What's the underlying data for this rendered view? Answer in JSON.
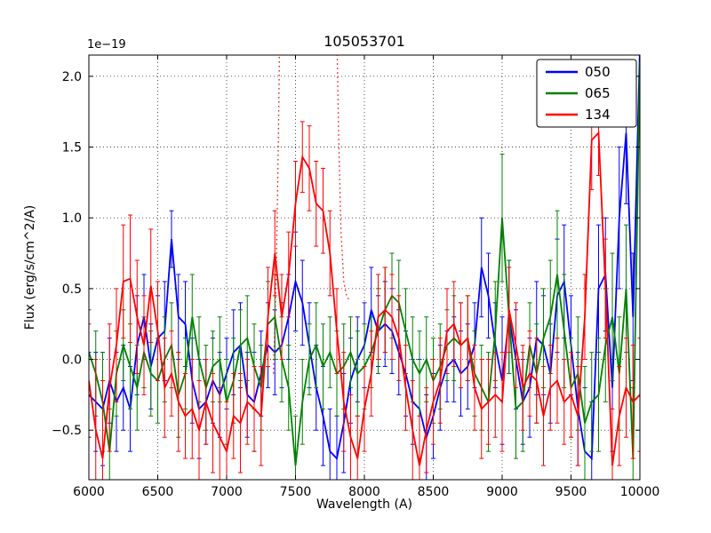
{
  "chart_data": {
    "type": "line",
    "title": "105053701",
    "xlabel": "Wavelength (A)",
    "ylabel": "Flux (erg/s/cm^2/A)",
    "y_scale_factor": "1e−19",
    "xlim": [
      6000,
      10000
    ],
    "ylim": [
      -0.85,
      2.15
    ],
    "x_ticks": [
      6000,
      6500,
      7000,
      7500,
      8000,
      8500,
      9000,
      9500,
      10000
    ],
    "y_ticks": [
      -0.5,
      0.0,
      0.5,
      1.0,
      1.5,
      2.0
    ],
    "grid": true,
    "grid_style": "dotted",
    "legend_position": "upper right",
    "x_start": 6000,
    "x_step": 50,
    "series": [
      {
        "name": "050",
        "color": "#0000ff",
        "values": [
          -0.25,
          -0.3,
          -0.35,
          -0.15,
          -0.3,
          -0.2,
          -0.35,
          0.1,
          0.3,
          -0.05,
          0.15,
          0.2,
          0.85,
          0.3,
          0.25,
          -0.15,
          -0.35,
          -0.3,
          -0.15,
          -0.25,
          -0.1,
          0.05,
          0.1,
          -0.25,
          -0.3,
          -0.1,
          0.1,
          0.05,
          0.1,
          0.3,
          0.55,
          0.4,
          0.1,
          -0.2,
          -0.4,
          -0.65,
          -0.7,
          -0.45,
          -0.15,
          0.0,
          0.1,
          0.35,
          0.2,
          0.25,
          0.2,
          0.05,
          -0.1,
          -0.3,
          -0.35,
          -0.55,
          -0.4,
          -0.2,
          -0.05,
          0.0,
          -0.1,
          -0.05,
          0.1,
          0.65,
          0.45,
          0.1,
          -0.15,
          0.3,
          0.0,
          -0.3,
          -0.2,
          0.15,
          0.1,
          -0.1,
          0.45,
          0.55,
          0.1,
          -0.35,
          -0.65,
          -0.7,
          0.5,
          0.6,
          -0.2,
          1.0,
          1.6,
          0.3,
          2.2
        ],
        "errors": [
          0.3,
          0.35,
          0.4,
          0.3,
          0.35,
          0.3,
          0.3,
          0.35,
          0.3,
          0.3,
          0.3,
          0.35,
          0.2,
          0.3,
          0.3,
          0.3,
          0.35,
          0.3,
          0.3,
          0.3,
          0.25,
          0.3,
          0.3,
          0.3,
          0.35,
          0.3,
          0.3,
          0.3,
          0.3,
          0.3,
          0.35,
          0.3,
          0.3,
          0.3,
          0.35,
          0.3,
          0.3,
          0.35,
          0.3,
          0.3,
          0.3,
          0.3,
          0.25,
          0.3,
          0.3,
          0.3,
          0.3,
          0.3,
          0.35,
          0.3,
          0.3,
          0.3,
          0.25,
          0.3,
          0.3,
          0.3,
          0.3,
          0.35,
          0.3,
          0.3,
          0.45,
          0.4,
          0.35,
          0.3,
          0.35,
          0.4,
          0.35,
          0.35,
          0.4,
          0.4,
          0.35,
          0.4,
          0.45,
          0.4,
          0.45,
          0.4,
          0.45,
          0.5,
          0.5,
          0.45,
          0.5
        ]
      },
      {
        "name": "065",
        "color": "#008000",
        "values": [
          0.05,
          -0.1,
          -0.3,
          -0.65,
          -0.1,
          0.1,
          -0.05,
          -0.2,
          0.05,
          -0.1,
          -0.15,
          0.0,
          0.1,
          -0.25,
          -0.1,
          0.3,
          0.0,
          -0.2,
          -0.05,
          0.0,
          -0.3,
          -0.15,
          0.1,
          0.15,
          -0.05,
          -0.2,
          0.25,
          0.3,
          0.0,
          -0.2,
          -0.75,
          -0.3,
          0.0,
          0.1,
          -0.05,
          0.05,
          -0.1,
          -0.05,
          0.05,
          -0.1,
          -0.05,
          0.05,
          0.2,
          0.35,
          0.45,
          0.4,
          0.2,
          0.0,
          -0.1,
          0.0,
          -0.15,
          -0.05,
          0.1,
          0.15,
          0.1,
          0.15,
          -0.1,
          -0.2,
          -0.3,
          0.2,
          1.0,
          0.3,
          -0.35,
          -0.3,
          0.1,
          -0.1,
          0.15,
          0.3,
          0.6,
          0.2,
          -0.2,
          -0.1,
          -0.45,
          -0.3,
          -0.25,
          0.1,
          0.3,
          -0.1,
          0.5,
          -0.7,
          2.1
        ],
        "errors": [
          0.3,
          0.3,
          0.35,
          0.3,
          0.3,
          0.25,
          0.3,
          0.3,
          0.25,
          0.3,
          0.3,
          0.3,
          0.3,
          0.3,
          0.25,
          0.3,
          0.3,
          0.3,
          0.25,
          0.3,
          0.3,
          0.3,
          0.25,
          0.3,
          0.3,
          0.3,
          0.3,
          0.3,
          0.3,
          0.3,
          0.35,
          0.3,
          0.25,
          0.3,
          0.3,
          0.25,
          0.3,
          0.3,
          0.25,
          0.3,
          0.3,
          0.25,
          0.3,
          0.3,
          0.3,
          0.3,
          0.3,
          0.3,
          0.3,
          0.3,
          0.3,
          0.3,
          0.25,
          0.3,
          0.3,
          0.3,
          0.3,
          0.3,
          0.35,
          0.35,
          0.45,
          0.4,
          0.35,
          0.35,
          0.3,
          0.35,
          0.35,
          0.4,
          0.45,
          0.4,
          0.35,
          0.4,
          0.4,
          0.35,
          0.4,
          0.4,
          0.45,
          0.4,
          0.45,
          0.5,
          0.55
        ]
      },
      {
        "name": "134",
        "color": "#ff0000",
        "values": [
          -0.15,
          -0.5,
          -0.7,
          -0.2,
          0.1,
          0.55,
          0.57,
          0.3,
          0.1,
          0.52,
          0.2,
          -0.2,
          -0.1,
          -0.3,
          -0.4,
          -0.35,
          -0.5,
          -0.3,
          -0.45,
          -0.55,
          -0.65,
          -0.4,
          -0.45,
          -0.3,
          -0.35,
          -0.4,
          0.3,
          0.75,
          0.3,
          0.6,
          1.1,
          1.43,
          1.35,
          1.1,
          1.05,
          0.75,
          0.2,
          -0.3,
          -0.55,
          -0.7,
          -0.35,
          -0.1,
          0.3,
          0.35,
          0.3,
          0.15,
          -0.2,
          -0.5,
          -0.75,
          -0.5,
          -0.3,
          -0.15,
          0.2,
          0.25,
          0.1,
          0.15,
          -0.2,
          -0.35,
          -0.3,
          -0.25,
          -0.3,
          0.35,
          0.1,
          -0.2,
          -0.1,
          -0.15,
          -0.4,
          -0.2,
          -0.15,
          -0.3,
          -0.25,
          -0.4,
          0.3,
          1.55,
          1.6,
          0.5,
          -0.75,
          -0.4,
          -0.2,
          -0.3,
          -0.25
        ],
        "errors": [
          0.4,
          0.5,
          0.55,
          0.45,
          0.4,
          0.4,
          0.45,
          0.4,
          0.35,
          0.4,
          0.35,
          0.35,
          0.3,
          0.35,
          0.3,
          0.35,
          0.35,
          0.3,
          0.35,
          0.35,
          0.35,
          0.3,
          0.35,
          0.3,
          0.3,
          0.35,
          0.35,
          0.3,
          0.3,
          0.3,
          0.3,
          0.25,
          0.3,
          0.3,
          0.3,
          0.3,
          0.3,
          0.35,
          0.3,
          0.3,
          0.3,
          0.3,
          0.3,
          0.3,
          0.3,
          0.3,
          0.3,
          0.35,
          0.35,
          0.3,
          0.3,
          0.3,
          0.3,
          0.3,
          0.3,
          0.3,
          0.3,
          0.35,
          0.3,
          0.3,
          0.35,
          0.3,
          0.3,
          0.3,
          0.3,
          0.3,
          0.35,
          0.3,
          0.3,
          0.3,
          0.3,
          0.35,
          0.3,
          0.35,
          0.3,
          0.35,
          0.4,
          0.35,
          0.35,
          0.4,
          0.4
        ]
      }
    ],
    "overlay": {
      "name": "134-dotted-profile",
      "color": "#ff0000",
      "style": "dotted",
      "points": [
        [
          7340,
          -0.1
        ],
        [
          7360,
          0.6
        ],
        [
          7375,
          1.5
        ],
        [
          7385,
          2.3
        ],
        [
          7800,
          2.3
        ],
        [
          7815,
          1.5
        ],
        [
          7830,
          0.9
        ],
        [
          7850,
          0.55
        ],
        [
          7870,
          0.45
        ],
        [
          7890,
          0.42
        ]
      ]
    },
    "legend": [
      "050",
      "065",
      "134"
    ]
  }
}
